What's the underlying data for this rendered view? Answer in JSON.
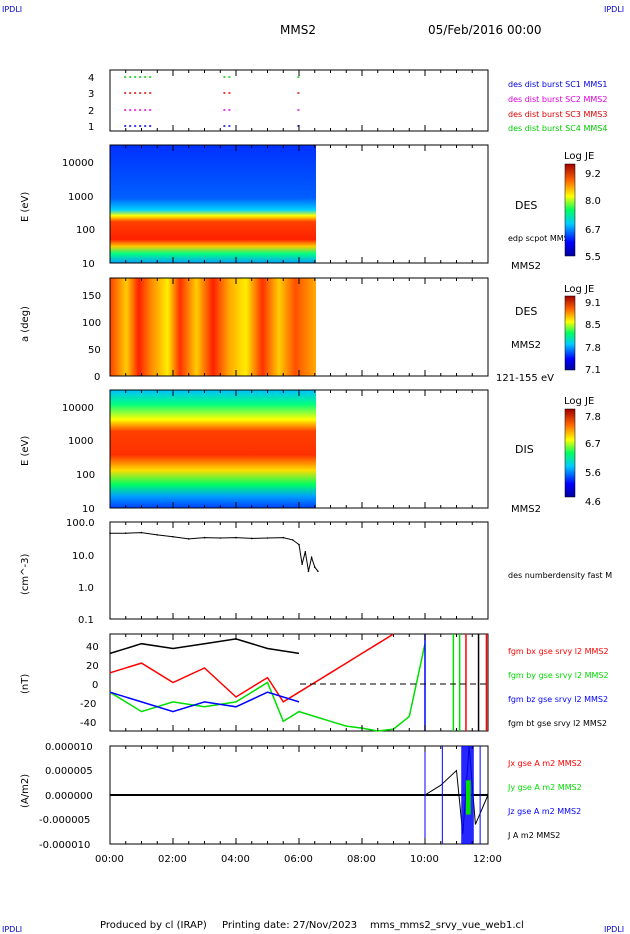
{
  "header": {
    "corner_left": "IPDLI",
    "corner_right": "IPDLI",
    "spacecraft": "MMS2",
    "datetime": "05/Feb/2016 00:00"
  },
  "footer": {
    "produced_by": "Produced by cl (IRAP)",
    "printing_date": "Printing date: 27/Nov/2023",
    "filename": "mms_mms2_srvy_vue_web1.cl",
    "corner_left": "IPDLI",
    "corner_right": "IPDLI"
  },
  "colors": {
    "mms1": "#0000dd",
    "mms2": "#dd00dd",
    "mms3": "#dd0000",
    "mms4": "#00cc00",
    "bx": "#ff0000",
    "by": "#00dd00",
    "bz": "#0000ff",
    "bt": "#000000"
  },
  "chart_data": [
    {
      "type": "scatter",
      "panel": "burst availability",
      "yticks": [
        "1",
        "2",
        "3",
        "4"
      ],
      "ylim": [
        0.5,
        4.5
      ],
      "legend": [
        {
          "label": "des dist burst SC1 MMS1",
          "color": "#0000dd"
        },
        {
          "label": "des dist burst SC2 MMS2",
          "color": "#dd00dd"
        },
        {
          "label": "des dist burst SC3 MMS3",
          "color": "#dd0000"
        },
        {
          "label": "des dist burst SC4 MMS4",
          "color": "#00cc00"
        }
      ],
      "intervals_hours": [
        0.45,
        1.4,
        3.6,
        3.9,
        5.95,
        6.1
      ]
    },
    {
      "type": "heatmap",
      "panel": "DES energy spectrogram",
      "ylabel": "E (eV)",
      "yscale": "log",
      "yticks": [
        "10",
        "100",
        "1000",
        "10000"
      ],
      "ylim": [
        10,
        30000
      ],
      "colorbar": {
        "title": "Log JE",
        "ticks": [
          "9.2",
          "8.0",
          "6.7",
          "5.5"
        ]
      },
      "labels": [
        "DES",
        "edp scpot MMS2",
        "MMS2"
      ],
      "data_end_hour": 6.55
    },
    {
      "type": "heatmap",
      "panel": "DES pitch angle",
      "ylabel": "a (deg)",
      "yticks": [
        "0",
        "50",
        "100",
        "150"
      ],
      "ylim": [
        0,
        180
      ],
      "colorbar": {
        "title": "Log JE",
        "ticks": [
          "9.1",
          "8.5",
          "7.8",
          "7.1"
        ]
      },
      "labels": [
        "DES",
        "MMS2",
        "121-155 eV"
      ],
      "data_end_hour": 6.55
    },
    {
      "type": "heatmap",
      "panel": "DIS energy spectrogram",
      "ylabel": "E (eV)",
      "yscale": "log",
      "yticks": [
        "10",
        "100",
        "1000",
        "10000"
      ],
      "ylim": [
        10,
        30000
      ],
      "colorbar": {
        "title": "Log JE",
        "ticks": [
          "7.8",
          "6.7",
          "5.6",
          "4.6"
        ]
      },
      "labels": [
        "DIS",
        "MMS2"
      ],
      "data_end_hour": 6.55
    },
    {
      "type": "line",
      "panel": "density",
      "ylabel": "(cm^-3)",
      "yscale": "log",
      "yticks": [
        "0.1",
        "1.0",
        "10.0",
        "100.0"
      ],
      "ylim": [
        0.1,
        100
      ],
      "legend": [
        {
          "label": "des numberdensity fast M",
          "color": "#000000"
        }
      ],
      "x": [
        0.0,
        0.5,
        1.0,
        1.5,
        2.0,
        2.5,
        3.0,
        3.5,
        4.0,
        4.5,
        5.0,
        5.5,
        5.8,
        6.0,
        6.1,
        6.2,
        6.3,
        6.4,
        6.5,
        6.6
      ],
      "values": [
        45,
        45,
        47,
        40,
        35,
        30,
        33,
        32,
        33,
        31,
        32,
        33,
        28,
        20,
        5,
        12,
        3,
        8,
        4,
        3
      ]
    },
    {
      "type": "line",
      "panel": "magnetic field",
      "ylabel": "(nT)",
      "yticks": [
        "-40",
        "-20",
        "0",
        "20",
        "40"
      ],
      "ylim": [
        -50,
        50
      ],
      "series": [
        {
          "name": "fgm bx gse srvy l2 MMS2",
          "color": "#ff0000",
          "x": [
            0,
            1,
            2,
            3,
            4,
            5,
            5.5,
            6,
            6.5,
            7,
            7.5,
            8,
            8.5,
            9
          ],
          "values": [
            10,
            20,
            0,
            15,
            -15,
            5,
            -20,
            -10,
            0,
            10,
            20,
            30,
            40,
            50
          ]
        },
        {
          "name": "fgm by gse srvy l2 MMS2",
          "color": "#00dd00",
          "x": [
            0,
            1,
            2,
            3,
            4,
            5,
            5.5,
            6,
            6.5,
            7,
            7.5,
            8,
            8.5,
            9,
            9.5,
            10
          ],
          "values": [
            -10,
            -30,
            -20,
            -25,
            -20,
            0,
            -40,
            -30,
            -35,
            -40,
            -45,
            -47,
            -50,
            -48,
            -35,
            40
          ]
        },
        {
          "name": "fgm bz gse srvy l2 MMS2",
          "color": "#0000ff",
          "x": [
            0,
            1,
            2,
            3,
            4,
            5,
            6
          ],
          "values": [
            -10,
            -20,
            -30,
            -20,
            -25,
            -10,
            -20
          ]
        },
        {
          "name": "fgm bt gse srvy l2 MMS2",
          "color": "#000000",
          "x": [
            0,
            1,
            2,
            3,
            4,
            5,
            6
          ],
          "values": [
            30,
            40,
            35,
            40,
            45,
            35,
            30
          ]
        }
      ]
    },
    {
      "type": "line",
      "panel": "current density",
      "ylabel": "(A/m2)",
      "yticks": [
        "-0.000010",
        "-0.000005",
        "0.000000",
        "0.000005",
        "0.000010"
      ],
      "ylim": [
        -1e-05,
        1e-05
      ],
      "series": [
        {
          "name": "Jx gse A m2 MMS2",
          "color": "#ff0000"
        },
        {
          "name": "Jy gse A m2 MMS2",
          "color": "#00dd00"
        },
        {
          "name": "Jz gse A m2 MMS2",
          "color": "#0000ff"
        },
        {
          "name": "J A m2 MMS2",
          "color": "#000000"
        }
      ],
      "x": [
        0,
        2,
        4,
        6,
        8,
        10,
        10.5,
        11,
        11.2,
        11.4,
        11.6,
        12
      ],
      "values": [
        0,
        0,
        0,
        0,
        0,
        0,
        2e-06,
        5e-06,
        -8e-06,
        1e-05,
        -6e-06,
        0
      ]
    }
  ],
  "xaxis": {
    "xlim": [
      0,
      12
    ],
    "ticks": [
      "00:00",
      "02:00",
      "04:00",
      "06:00",
      "08:00",
      "10:00",
      "12:00"
    ]
  }
}
